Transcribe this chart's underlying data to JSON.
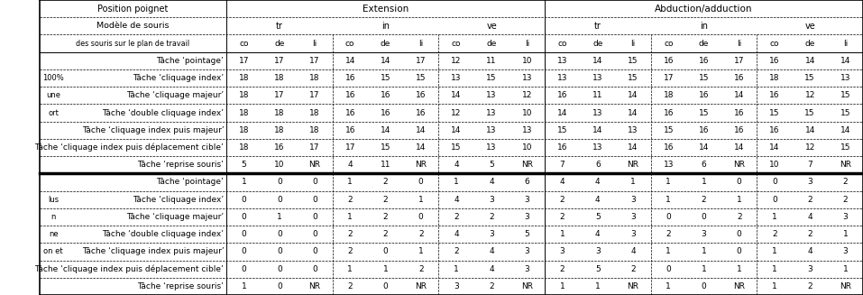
{
  "row_labels_top": [
    "Tâche ‘pointage’",
    "Tâche ‘cliquage index’",
    "Tâche ‘cliquage majeur’",
    "Tâche ‘double cliquage index’",
    "Tâche ‘cliquage index puis majeur’",
    "Tâche ‘cliquage index puis déplacement cible’",
    "Tâche ‘reprise souris’"
  ],
  "row_labels_bottom": [
    "Tâche ‘pointage’",
    "Tâche ‘cliquage index’",
    "Tâche ‘cliquage majeur’",
    "Tâche ‘double cliquage index’",
    "Tâche ‘cliquage index puis majeur’",
    "Tâche ‘cliquage index puis déplacement cible’",
    "Tâche ‘reprise souris’"
  ],
  "left_labels_top": [
    "",
    "100%",
    "une",
    "ort",
    "",
    "",
    ""
  ],
  "left_labels_bottom": [
    "",
    "lus",
    "n",
    "ne",
    "on et",
    "",
    ""
  ],
  "data_top": [
    [
      17,
      17,
      17,
      14,
      14,
      17,
      12,
      11,
      10,
      13,
      14,
      15,
      16,
      16,
      17,
      16,
      14,
      14
    ],
    [
      18,
      18,
      18,
      16,
      15,
      15,
      13,
      15,
      13,
      13,
      13,
      15,
      17,
      15,
      16,
      18,
      15,
      13
    ],
    [
      18,
      17,
      17,
      16,
      16,
      16,
      14,
      13,
      12,
      16,
      11,
      14,
      18,
      16,
      14,
      16,
      12,
      15
    ],
    [
      18,
      18,
      18,
      16,
      16,
      16,
      12,
      13,
      10,
      14,
      13,
      14,
      16,
      15,
      16,
      15,
      15,
      15
    ],
    [
      18,
      18,
      18,
      16,
      14,
      14,
      14,
      13,
      13,
      15,
      14,
      13,
      15,
      16,
      16,
      16,
      14,
      14
    ],
    [
      18,
      16,
      17,
      17,
      15,
      14,
      15,
      13,
      10,
      16,
      13,
      14,
      16,
      14,
      14,
      14,
      12,
      15
    ],
    [
      5,
      10,
      "NR",
      4,
      11,
      "NR",
      4,
      5,
      "NR",
      7,
      6,
      "NR",
      13,
      6,
      "NR",
      10,
      7,
      "NR"
    ]
  ],
  "data_bottom": [
    [
      1,
      0,
      0,
      1,
      2,
      0,
      1,
      4,
      6,
      4,
      4,
      1,
      1,
      1,
      0,
      0,
      3,
      2
    ],
    [
      0,
      0,
      0,
      2,
      2,
      1,
      4,
      3,
      3,
      2,
      4,
      3,
      1,
      2,
      1,
      0,
      2,
      2
    ],
    [
      0,
      1,
      0,
      1,
      2,
      0,
      2,
      2,
      3,
      2,
      5,
      3,
      0,
      0,
      2,
      1,
      4,
      3
    ],
    [
      0,
      0,
      0,
      2,
      2,
      2,
      4,
      3,
      5,
      1,
      4,
      3,
      2,
      3,
      0,
      2,
      2,
      1
    ],
    [
      0,
      0,
      0,
      2,
      0,
      1,
      2,
      4,
      3,
      3,
      3,
      4,
      1,
      1,
      0,
      1,
      4,
      3
    ],
    [
      0,
      0,
      0,
      1,
      1,
      2,
      1,
      4,
      3,
      2,
      5,
      2,
      0,
      1,
      1,
      1,
      3,
      1
    ],
    [
      1,
      0,
      "NR",
      2,
      0,
      "NR",
      3,
      2,
      "NR",
      1,
      1,
      "NR",
      1,
      0,
      "NR",
      1,
      2,
      "NR"
    ]
  ],
  "header_pos_poignet": "Position poignet",
  "header_extension": "Extension",
  "header_abduction": "Abduction/adduction",
  "header_modele": "Modèle de souris",
  "header_subgroups": [
    "tr",
    "in",
    "ve"
  ],
  "header_des_souris": "des souris sur le plan de travail",
  "header_codeli": [
    "co",
    "de",
    "li"
  ]
}
